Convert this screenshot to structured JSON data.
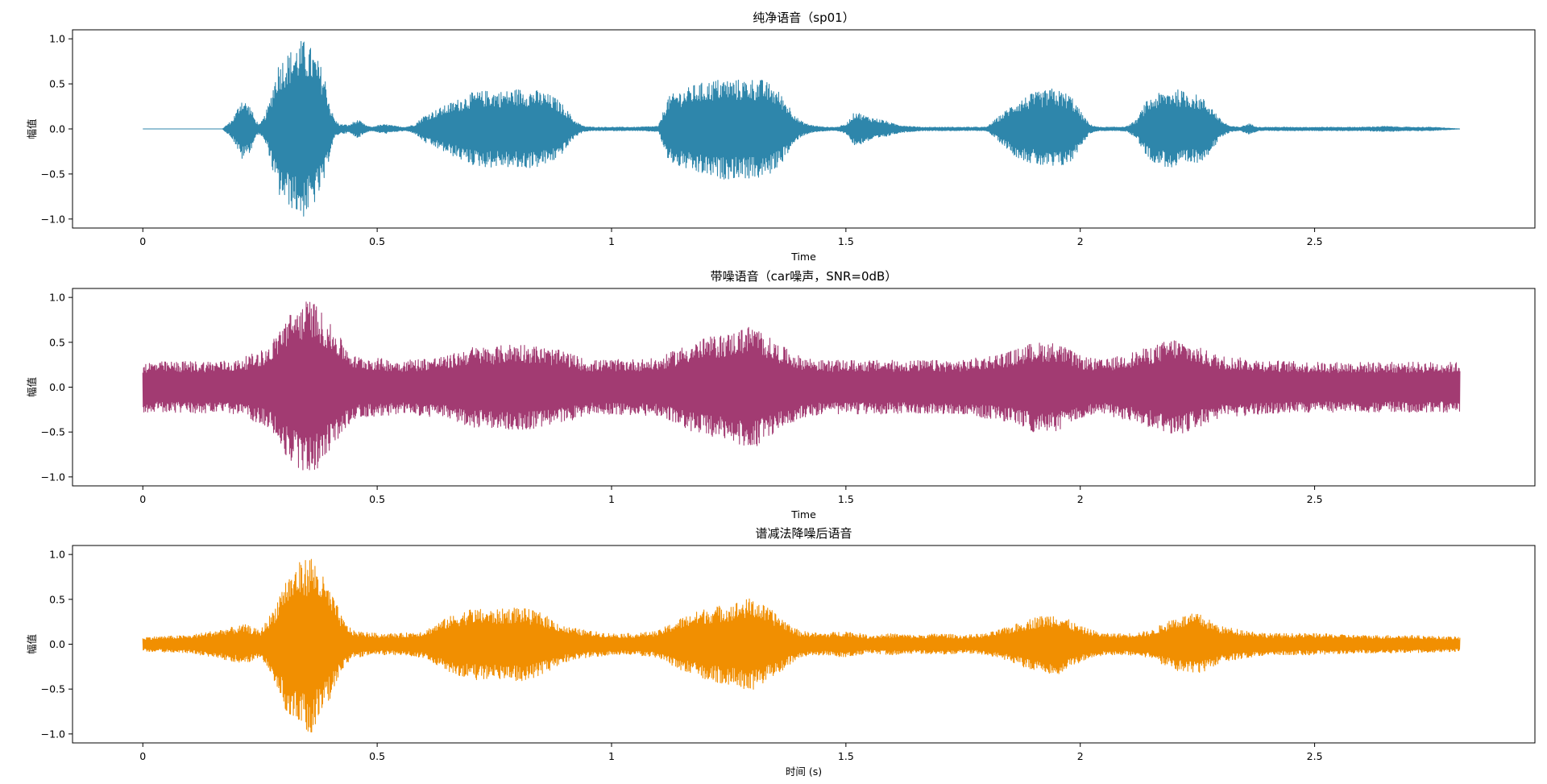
{
  "chart_data": [
    {
      "type": "line",
      "title": "纯净语音（sp01）",
      "xlabel": "Time",
      "ylabel": "幅值",
      "xlim": [
        -0.15,
        2.97
      ],
      "ylim": [
        -1.1,
        1.1
      ],
      "xticks": [
        0,
        0.5,
        1,
        1.5,
        2,
        2.5
      ],
      "xtick_labels": [
        "0",
        "0.5",
        "1",
        "1.5",
        "2",
        "2.5"
      ],
      "yticks": [
        1.0,
        0.5,
        0.0,
        -0.5,
        -1.0
      ],
      "ytick_labels": [
        "1.0",
        "0.5",
        "0.0",
        "−0.5",
        "−1.0"
      ],
      "grid": false,
      "color": "#2e86ab",
      "series": [
        {
          "x": [
            0.0,
            0.17,
            0.18,
            0.19,
            0.2,
            0.21,
            0.22,
            0.23,
            0.24,
            0.25,
            0.26,
            0.27,
            0.28,
            0.29,
            0.3,
            0.31,
            0.32,
            0.33,
            0.34,
            0.35,
            0.36,
            0.37,
            0.38,
            0.39,
            0.4,
            0.41,
            0.42,
            0.43,
            0.44,
            0.45,
            0.46,
            0.47,
            0.48,
            0.49,
            0.5,
            0.52,
            0.54,
            0.56,
            0.58,
            0.6,
            0.62,
            0.64,
            0.66,
            0.68,
            0.7,
            0.72,
            0.74,
            0.76,
            0.78,
            0.8,
            0.82,
            0.84,
            0.86,
            0.88,
            0.9,
            0.92,
            0.94,
            0.96,
            1.0,
            1.05,
            1.1,
            1.12,
            1.14,
            1.16,
            1.18,
            1.2,
            1.22,
            1.24,
            1.26,
            1.28,
            1.3,
            1.32,
            1.34,
            1.36,
            1.38,
            1.4,
            1.42,
            1.44,
            1.46,
            1.48,
            1.5,
            1.52,
            1.54,
            1.56,
            1.58,
            1.6,
            1.62,
            1.64,
            1.66,
            1.7,
            1.75,
            1.8,
            1.84,
            1.86,
            1.88,
            1.9,
            1.92,
            1.94,
            1.96,
            1.98,
            2.0,
            2.02,
            2.04,
            2.06,
            2.08,
            2.1,
            2.12,
            2.14,
            2.16,
            2.18,
            2.2,
            2.22,
            2.24,
            2.26,
            2.28,
            2.3,
            2.32,
            2.34,
            2.36,
            2.38,
            2.4,
            2.45,
            2.5,
            2.55,
            2.6,
            2.65,
            2.7,
            2.75,
            2.81
          ],
          "y": [
            0.0,
            0.0,
            0.05,
            0.1,
            0.2,
            0.35,
            0.3,
            0.25,
            0.1,
            0.05,
            0.15,
            0.3,
            0.55,
            0.75,
            0.8,
            0.85,
            0.9,
            0.95,
            1.0,
            0.95,
            0.9,
            0.8,
            0.7,
            0.55,
            0.25,
            0.1,
            0.05,
            0.05,
            0.04,
            0.08,
            0.1,
            0.06,
            0.03,
            0.02,
            0.04,
            0.05,
            0.03,
            0.02,
            0.05,
            0.15,
            0.2,
            0.25,
            0.3,
            0.35,
            0.4,
            0.42,
            0.43,
            0.42,
            0.43,
            0.45,
            0.44,
            0.43,
            0.4,
            0.35,
            0.25,
            0.1,
            0.03,
            0.02,
            0.02,
            0.02,
            0.03,
            0.35,
            0.42,
            0.45,
            0.5,
            0.52,
            0.55,
            0.56,
            0.55,
            0.55,
            0.56,
            0.55,
            0.5,
            0.4,
            0.25,
            0.1,
            0.05,
            0.03,
            0.02,
            0.02,
            0.05,
            0.2,
            0.15,
            0.12,
            0.1,
            0.06,
            0.04,
            0.03,
            0.02,
            0.02,
            0.02,
            0.02,
            0.2,
            0.3,
            0.35,
            0.4,
            0.42,
            0.45,
            0.42,
            0.38,
            0.2,
            0.05,
            0.02,
            0.02,
            0.02,
            0.03,
            0.1,
            0.3,
            0.38,
            0.42,
            0.45,
            0.42,
            0.4,
            0.35,
            0.25,
            0.1,
            0.03,
            0.02,
            0.06,
            0.02,
            0.02,
            0.02,
            0.02,
            0.02,
            0.02,
            0.03,
            0.02,
            0.02,
            0.0
          ]
        }
      ]
    },
    {
      "type": "line",
      "title": "带噪语音（car噪声，SNR=0dB）",
      "xlabel": "Time",
      "ylabel": "幅值",
      "xlim": [
        -0.15,
        2.97
      ],
      "ylim": [
        -1.1,
        1.1
      ],
      "xticks": [
        0,
        0.5,
        1,
        1.5,
        2,
        2.5
      ],
      "xtick_labels": [
        "0",
        "0.5",
        "1",
        "1.5",
        "2",
        "2.5"
      ],
      "yticks": [
        1.0,
        0.5,
        0.0,
        -0.5,
        -1.0
      ],
      "ytick_labels": [
        "1.0",
        "0.5",
        "0.0",
        "−0.5",
        "−1.0"
      ],
      "grid": false,
      "color": "#a23b72",
      "series": [
        {
          "x": [
            0.0,
            0.2,
            0.27,
            0.3,
            0.33,
            0.36,
            0.4,
            0.45,
            0.55,
            0.65,
            0.7,
            0.75,
            0.8,
            0.85,
            0.9,
            0.95,
            1.1,
            1.15,
            1.2,
            1.25,
            1.3,
            1.35,
            1.4,
            1.45,
            1.55,
            1.65,
            1.75,
            1.85,
            1.9,
            1.95,
            2.0,
            2.05,
            2.15,
            2.2,
            2.25,
            2.3,
            2.4,
            2.5,
            2.6,
            2.7,
            2.81
          ],
          "y": [
            0.28,
            0.3,
            0.45,
            0.75,
            0.9,
            1.0,
            0.7,
            0.35,
            0.3,
            0.35,
            0.45,
            0.45,
            0.5,
            0.45,
            0.4,
            0.3,
            0.32,
            0.45,
            0.55,
            0.6,
            0.7,
            0.5,
            0.35,
            0.3,
            0.3,
            0.3,
            0.3,
            0.4,
            0.5,
            0.5,
            0.35,
            0.3,
            0.45,
            0.55,
            0.45,
            0.35,
            0.3,
            0.28,
            0.28,
            0.28,
            0.28
          ]
        }
      ]
    },
    {
      "type": "line",
      "title": "谱减法降噪后语音",
      "xlabel": "时间 (s)",
      "ylabel": "幅值",
      "xlim": [
        -0.15,
        2.97
      ],
      "ylim": [
        -1.1,
        1.1
      ],
      "xticks": [
        0,
        0.5,
        1,
        1.5,
        2,
        2.5
      ],
      "xtick_labels": [
        "0",
        "0.5",
        "1",
        "1.5",
        "2",
        "2.5"
      ],
      "yticks": [
        1.0,
        0.5,
        0.0,
        -0.5,
        -1.0
      ],
      "ytick_labels": [
        "1.0",
        "0.5",
        "0.0",
        "−0.5",
        "−1.0"
      ],
      "grid": false,
      "color": "#f18f01",
      "series": [
        {
          "x": [
            0.0,
            0.1,
            0.15,
            0.2,
            0.22,
            0.25,
            0.28,
            0.3,
            0.33,
            0.36,
            0.4,
            0.43,
            0.45,
            0.5,
            0.55,
            0.6,
            0.65,
            0.7,
            0.75,
            0.8,
            0.85,
            0.9,
            0.95,
            1.0,
            1.05,
            1.1,
            1.15,
            1.2,
            1.25,
            1.3,
            1.35,
            1.4,
            1.45,
            1.5,
            1.55,
            1.6,
            1.65,
            1.7,
            1.75,
            1.8,
            1.85,
            1.9,
            1.95,
            2.0,
            2.05,
            2.1,
            2.15,
            2.2,
            2.25,
            2.3,
            2.4,
            2.5,
            2.6,
            2.7,
            2.81
          ],
          "y": [
            0.08,
            0.1,
            0.15,
            0.2,
            0.22,
            0.15,
            0.4,
            0.7,
            0.9,
            1.0,
            0.6,
            0.25,
            0.15,
            0.12,
            0.12,
            0.15,
            0.3,
            0.4,
            0.38,
            0.42,
            0.35,
            0.2,
            0.15,
            0.12,
            0.12,
            0.15,
            0.3,
            0.4,
            0.45,
            0.52,
            0.35,
            0.15,
            0.12,
            0.15,
            0.1,
            0.12,
            0.1,
            0.12,
            0.1,
            0.12,
            0.2,
            0.3,
            0.35,
            0.2,
            0.12,
            0.12,
            0.15,
            0.3,
            0.35,
            0.2,
            0.12,
            0.12,
            0.1,
            0.1,
            0.08
          ]
        }
      ]
    }
  ]
}
